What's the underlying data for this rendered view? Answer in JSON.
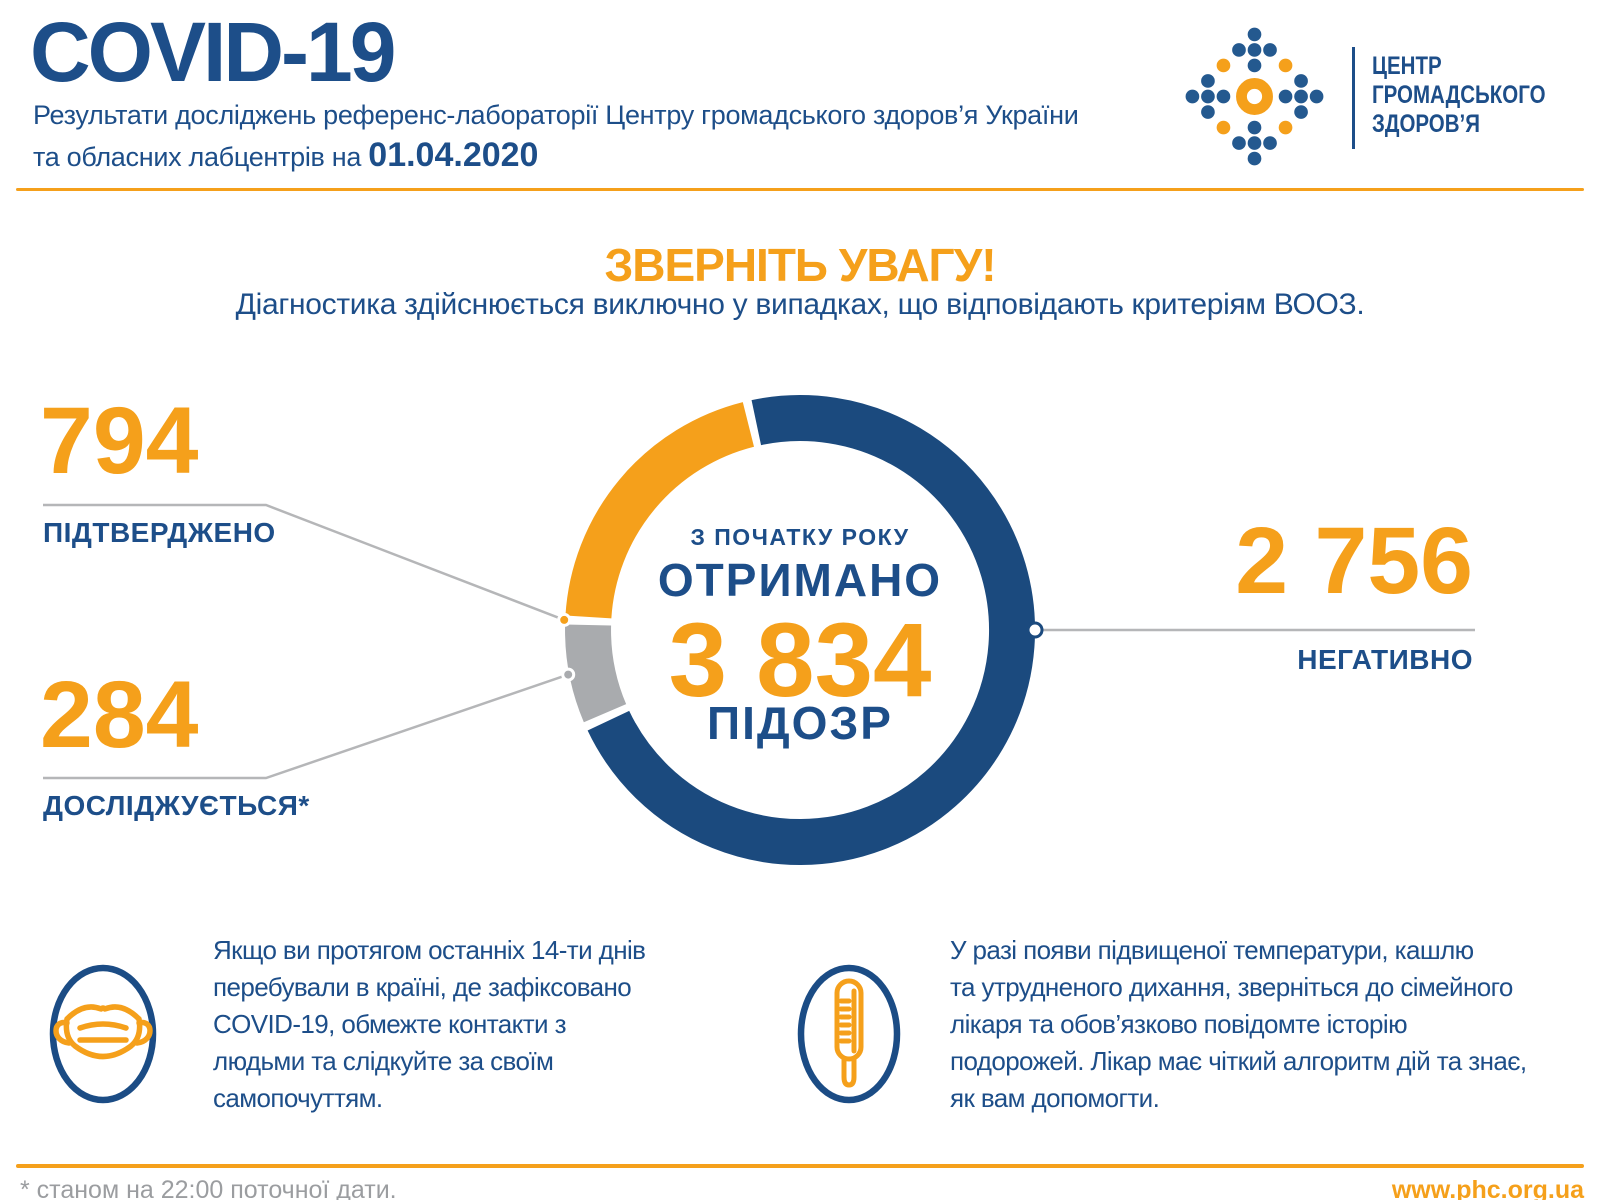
{
  "header": {
    "title": "COVID-19",
    "subtitle_line1": "Результати досліджень референс-лабораторії Центру громадського здоров’я України",
    "subtitle_line2_prefix": "та обласних лабцентрів на ",
    "date": "01.04.2020",
    "logo_lines": [
      "ЦЕНТР",
      "ГРОМАДСЬКОГО",
      "ЗДОРОВ’Я"
    ]
  },
  "notice": {
    "title": "ЗВЕРНІТЬ УВАГУ!",
    "subtitle": "Діагностика здійснюється виключно у випадках, що відповідають критеріям ВООЗ."
  },
  "chart_data": {
    "type": "pie",
    "donut": true,
    "total_value": 3834,
    "segments": [
      {
        "name": "НЕГАТИВНО",
        "value": 2756,
        "display": "2 756",
        "color": "#1b4a7e"
      },
      {
        "name": "ДОСЛІДЖУЄТЬСЯ*",
        "value": 284,
        "display": "284",
        "color": "#a9abae"
      },
      {
        "name": "ПІДТВЕРДЖЕНО",
        "value": 794,
        "display": "794",
        "color": "#f5a01b"
      }
    ],
    "center": {
      "line1": "З ПОЧАТКУ РОКУ",
      "line2": "ОТРИМАНО",
      "total": "3 834",
      "line4": "ПІДОЗР"
    },
    "layout": {
      "start_angle_deg": 347,
      "gap_deg": 2.2,
      "legend": "callout-lines"
    }
  },
  "stats": {
    "confirmed": {
      "value": "794",
      "label": "ПІДТВЕРДЖЕНО"
    },
    "investigated": {
      "value": "284",
      "label": "ДОСЛІДЖУЄТЬСЯ*"
    },
    "negative": {
      "value": "2 756",
      "label": "НЕГАТИВНО"
    }
  },
  "info_blocks": [
    {
      "icon": "mask-icon",
      "lines": [
        "Якщо ви протягом останніх 14-ти днів",
        "перебували в країні, де зафіксовано",
        "COVID-19, обмежте контакти з",
        "людьми та слідкуйте за своїм",
        "самопочуттям."
      ]
    },
    {
      "icon": "thermometer-icon",
      "lines": [
        "У разі появи підвищеної температури, кашлю",
        "та утрудненого дихання, зверніться до сімейного",
        "лікаря та обов’язково повідомте історію",
        "подорожей. Лікар має чіткий алгоритм дій та знає,",
        "як вам допомогти."
      ]
    }
  ],
  "footer": {
    "note": "* станом на 22:00 поточної дати.",
    "website": "www.phc.org.ua"
  },
  "colors": {
    "text_blue": "#1d4e89",
    "donut_blue": "#1b4a7e",
    "orange": "#f5a01b",
    "gray": "#a9abae",
    "line_gray": "#b5b6b8",
    "logo_blue": "#24598f"
  }
}
